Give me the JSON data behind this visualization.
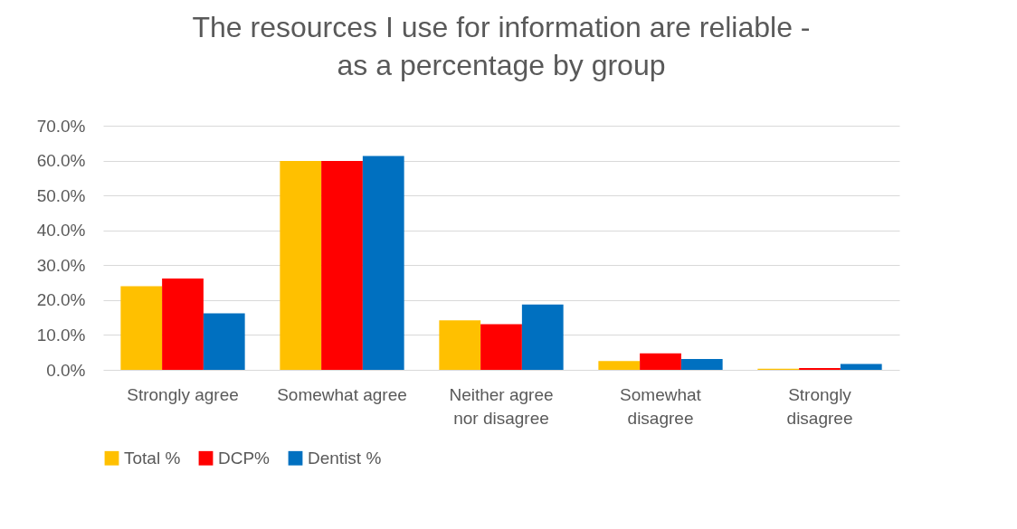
{
  "chart_data": {
    "type": "bar",
    "title": "The resources I use for information are reliable -\nas a percentage by group",
    "categories": [
      "Strongly agree",
      "Somewhat agree",
      "Neither agree nor disagree",
      "Somewhat disagree",
      "Strongly disagree"
    ],
    "series": [
      {
        "name": "Total %",
        "color": "#ffc000",
        "values": [
          24.0,
          59.9,
          14.2,
          2.5,
          0.3
        ]
      },
      {
        "name": "DCP%",
        "color": "#ff0000",
        "values": [
          26.2,
          59.9,
          13.1,
          4.7,
          0.5
        ]
      },
      {
        "name": "Dentist %",
        "color": "#0070c0",
        "values": [
          16.2,
          61.3,
          18.7,
          3.1,
          1.7
        ]
      }
    ],
    "ylim": [
      0,
      70
    ],
    "yticks": [
      {
        "value": 0,
        "label": "0.0%"
      },
      {
        "value": 10,
        "label": "10.0%"
      },
      {
        "value": 20,
        "label": "20.0%"
      },
      {
        "value": 30,
        "label": "30.0%"
      },
      {
        "value": 40,
        "label": "40.0%"
      },
      {
        "value": 50,
        "label": "50.0%"
      },
      {
        "value": 60,
        "label": "60.0%"
      },
      {
        "value": 70,
        "label": "70.0%"
      }
    ],
    "grid": "y",
    "legend": "bottom"
  }
}
